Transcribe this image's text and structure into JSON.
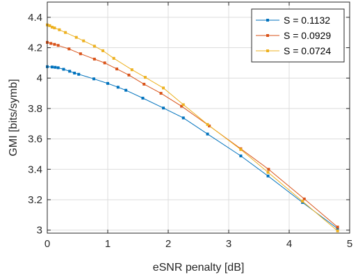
{
  "chart_data": {
    "type": "line",
    "title": "",
    "xlabel": "eSNR penalty [dB]",
    "ylabel": "GMI [bits/symb]",
    "xlim": [
      0,
      5
    ],
    "ylim": [
      2.98,
      4.5
    ],
    "xticks": [
      0,
      1,
      2,
      3,
      4,
      5
    ],
    "xtick_labels": [
      "0",
      "1",
      "2",
      "3",
      "4",
      "5"
    ],
    "yticks": [
      3,
      3.2,
      3.4,
      3.6,
      3.8,
      4,
      4.2,
      4.4
    ],
    "ytick_labels": [
      "3",
      "3.2",
      "3.4",
      "3.6",
      "3.8",
      "4",
      "4.2",
      "4.4"
    ],
    "grid": true,
    "legend_position": "top-right",
    "series": [
      {
        "name": "S = 0.1132",
        "color": "#0072BD",
        "marker": "square",
        "x": [
          0.0,
          0.08,
          0.13,
          0.18,
          0.27,
          0.37,
          0.45,
          0.52,
          0.77,
          1.0,
          1.17,
          1.3,
          1.58,
          1.92,
          2.25,
          2.65,
          3.2,
          3.65,
          4.22,
          4.8
        ],
        "y": [
          4.075,
          4.073,
          4.071,
          4.068,
          4.058,
          4.045,
          4.033,
          4.025,
          3.995,
          3.965,
          3.94,
          3.92,
          3.868,
          3.803,
          3.738,
          3.632,
          3.488,
          3.356,
          3.182,
          3.01
        ]
      },
      {
        "name": "S = 0.0929",
        "color": "#D95319",
        "marker": "square",
        "x": [
          0.0,
          0.06,
          0.12,
          0.18,
          0.36,
          0.55,
          0.78,
          0.95,
          1.15,
          1.35,
          1.6,
          1.88,
          2.22,
          2.68,
          3.2,
          3.66,
          4.25,
          4.8
        ],
        "y": [
          4.235,
          4.228,
          4.222,
          4.215,
          4.192,
          4.16,
          4.125,
          4.1,
          4.06,
          4.02,
          3.96,
          3.9,
          3.815,
          3.685,
          3.535,
          3.4,
          3.205,
          3.02
        ]
      },
      {
        "name": "S = 0.0724",
        "color": "#EDB120",
        "marker": "square",
        "x": [
          0.0,
          0.04,
          0.08,
          0.12,
          0.2,
          0.3,
          0.48,
          0.6,
          0.78,
          0.92,
          1.1,
          1.4,
          1.62,
          1.92,
          2.25,
          2.65,
          3.2,
          3.65,
          4.22,
          4.8
        ],
        "y": [
          4.35,
          4.345,
          4.335,
          4.33,
          4.318,
          4.3,
          4.268,
          4.245,
          4.21,
          4.18,
          4.13,
          4.055,
          4.005,
          3.935,
          3.825,
          3.695,
          3.53,
          3.38,
          3.19,
          2.995
        ]
      }
    ]
  }
}
